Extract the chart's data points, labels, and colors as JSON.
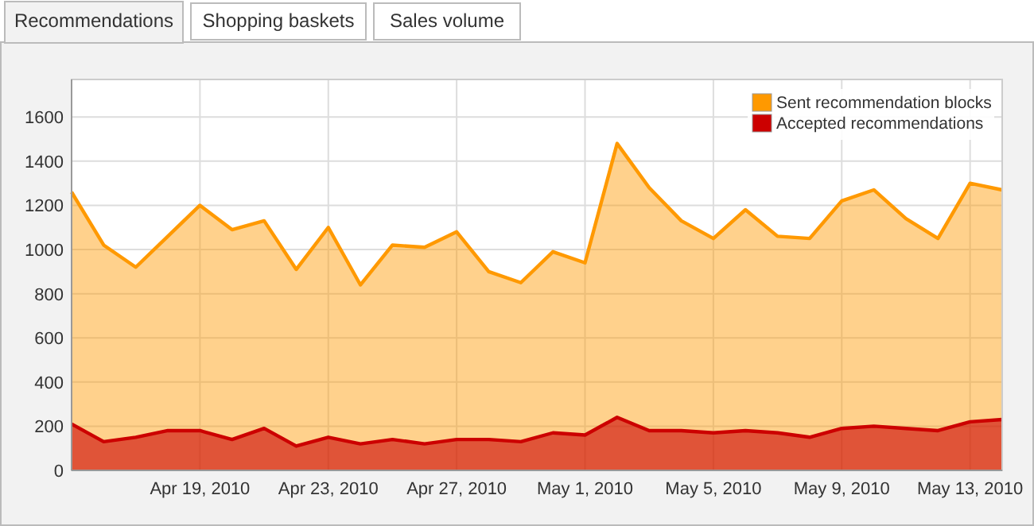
{
  "chart_data": {
    "type": "area",
    "x": [
      "2010-04-15",
      "2010-04-16",
      "2010-04-17",
      "2010-04-18",
      "2010-04-19",
      "2010-04-20",
      "2010-04-21",
      "2010-04-22",
      "2010-04-23",
      "2010-04-24",
      "2010-04-25",
      "2010-04-26",
      "2010-04-27",
      "2010-04-28",
      "2010-04-29",
      "2010-04-30",
      "2010-05-01",
      "2010-05-02",
      "2010-05-03",
      "2010-05-04",
      "2010-05-05",
      "2010-05-06",
      "2010-05-07",
      "2010-05-08",
      "2010-05-09",
      "2010-05-10",
      "2010-05-11",
      "2010-05-12",
      "2010-05-13",
      "2010-05-14"
    ],
    "series": [
      {
        "name": "Sent recommendation blocks",
        "color": "#ff9900",
        "values": [
          1260,
          1020,
          920,
          1060,
          1200,
          1090,
          1130,
          910,
          1100,
          840,
          1020,
          1010,
          1080,
          900,
          850,
          990,
          940,
          1480,
          1280,
          1130,
          1050,
          1180,
          1060,
          1050,
          1220,
          1270,
          1140,
          1050,
          1300,
          1270
        ]
      },
      {
        "name": "Accepted recommendations",
        "color": "#cc0000",
        "values": [
          210,
          130,
          150,
          180,
          180,
          140,
          190,
          110,
          150,
          120,
          140,
          120,
          140,
          140,
          130,
          170,
          160,
          240,
          180,
          180,
          170,
          180,
          170,
          150,
          190,
          200,
          190,
          180,
          220,
          230
        ]
      }
    ],
    "xlim": [
      "2010-04-15",
      "2010-05-14"
    ],
    "xticks": [
      {
        "value": "2010-04-19",
        "label": "Apr 19, 2010"
      },
      {
        "value": "2010-04-23",
        "label": "Apr 23, 2010"
      },
      {
        "value": "2010-04-27",
        "label": "Apr 27, 2010"
      },
      {
        "value": "2010-05-01",
        "label": "May 1, 2010"
      },
      {
        "value": "2010-05-05",
        "label": "May 5, 2010"
      },
      {
        "value": "2010-05-09",
        "label": "May 9, 2010"
      },
      {
        "value": "2010-05-13",
        "label": "May 13, 2010"
      }
    ],
    "ylim": [
      0,
      1770
    ],
    "yticks": [
      0,
      200,
      400,
      600,
      800,
      1000,
      1200,
      1400,
      1600
    ],
    "grid": true,
    "legend": "top right",
    "annotations": [
      "Recommendations",
      "Shopping baskets",
      "Sales volume"
    ]
  }
}
